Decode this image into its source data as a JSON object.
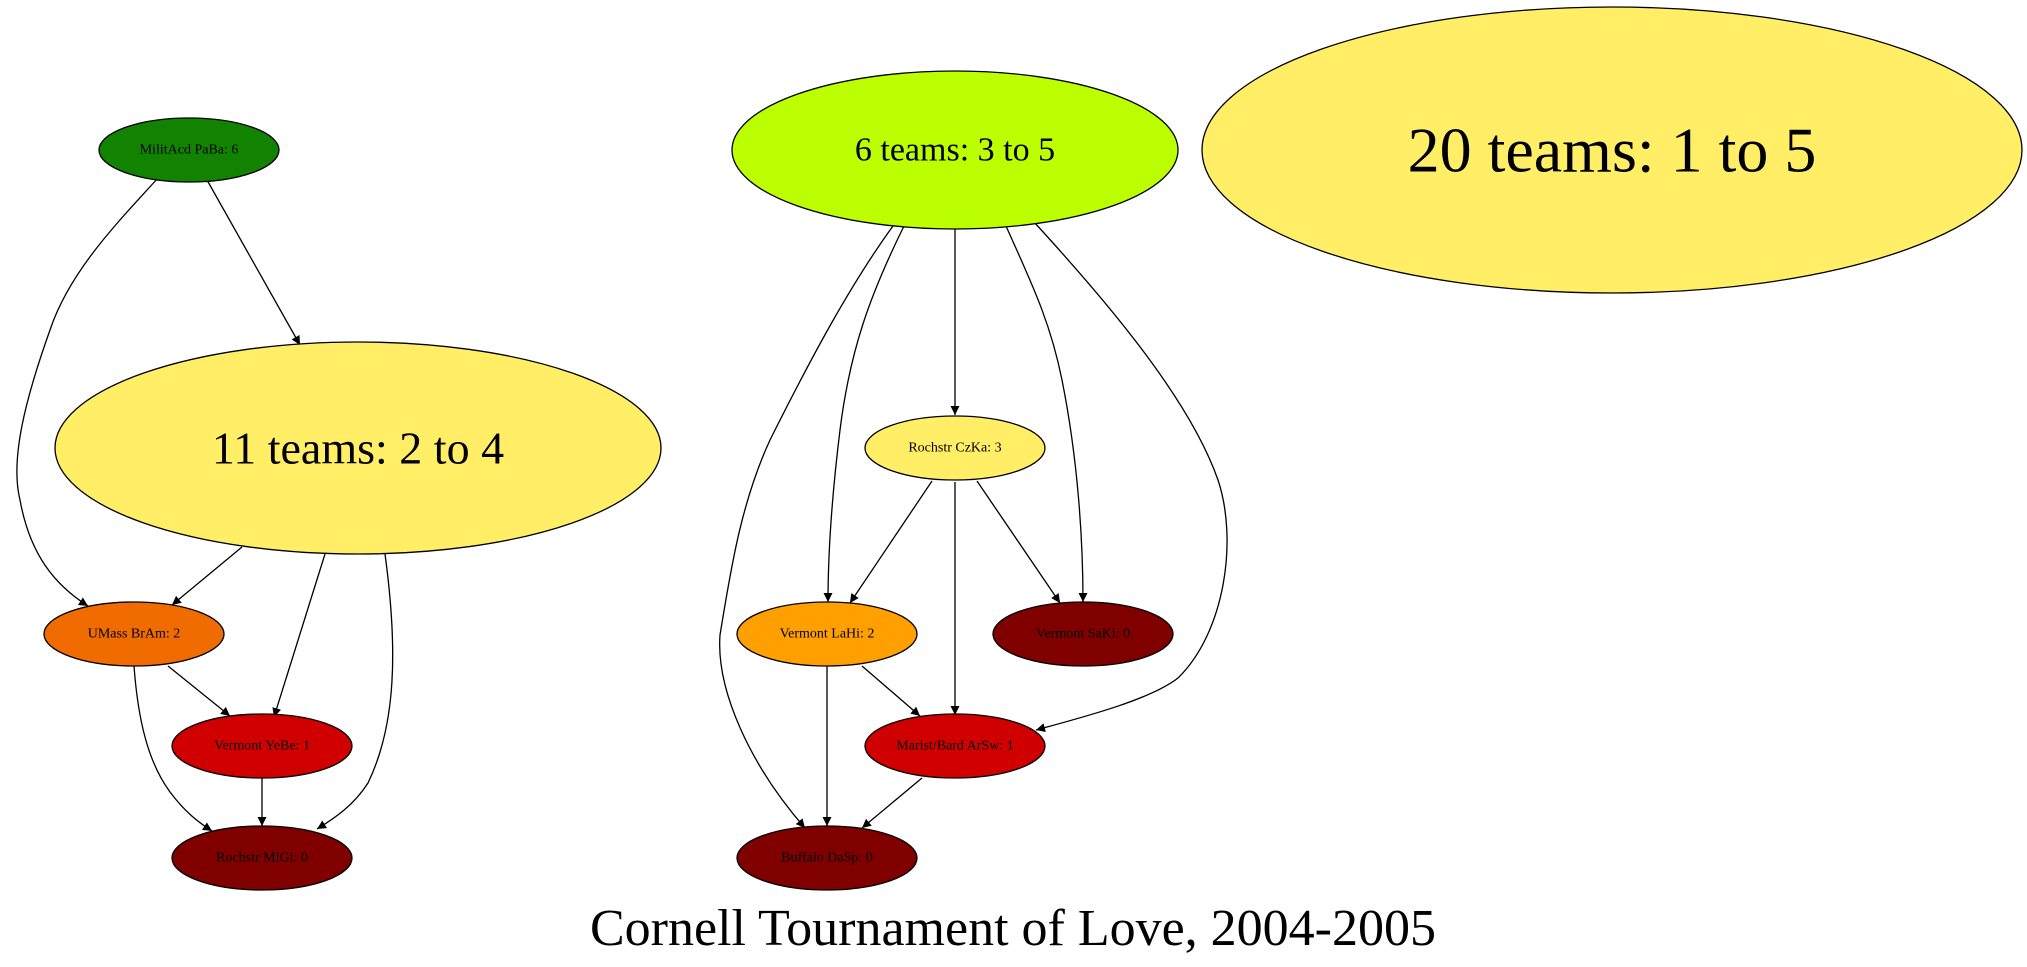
{
  "title": "Cornell Tournament of Love, 2004-2005",
  "nodes": [
    {
      "id": "militacd",
      "label": "MilitAcd PaBa: 6",
      "color": "#118300"
    },
    {
      "id": "six",
      "label": "6 teams: 3 to 5",
      "color": "#bbff00"
    },
    {
      "id": "twenty",
      "label": "20 teams: 1 to 5",
      "color": "#ffee66"
    },
    {
      "id": "eleven",
      "label": "11 teams: 2 to 4",
      "color": "#ffee66"
    },
    {
      "id": "rochstr_czka",
      "label": "Rochstr CzKa: 3",
      "color": "#ffee66"
    },
    {
      "id": "umass",
      "label": "UMass BrAm: 2",
      "color": "#f06c00"
    },
    {
      "id": "vermont_lahi",
      "label": "Vermont LaHi: 2",
      "color": "#ffa000"
    },
    {
      "id": "vermont_saki",
      "label": "Vermont SaKi: 0",
      "color": "#800000"
    },
    {
      "id": "vermont_yebe",
      "label": "Vermont YeBe: 1",
      "color": "#d00000"
    },
    {
      "id": "marist",
      "label": "Marist/Bard ArSw: 1",
      "color": "#d00000"
    },
    {
      "id": "rochstr_migi",
      "label": "Rochstr MiGi: 0",
      "color": "#800000"
    },
    {
      "id": "buffalo",
      "label": "Buffalo DaSp: 0",
      "color": "#800000"
    }
  ],
  "edges": [
    {
      "from": "militacd",
      "to": "eleven"
    },
    {
      "from": "militacd",
      "to": "umass"
    },
    {
      "from": "eleven",
      "to": "umass"
    },
    {
      "from": "eleven",
      "to": "vermont_yebe"
    },
    {
      "from": "eleven",
      "to": "rochstr_migi"
    },
    {
      "from": "umass",
      "to": "vermont_yebe"
    },
    {
      "from": "umass",
      "to": "rochstr_migi"
    },
    {
      "from": "vermont_yebe",
      "to": "rochstr_migi"
    },
    {
      "from": "six",
      "to": "rochstr_czka"
    },
    {
      "from": "six",
      "to": "vermont_lahi"
    },
    {
      "from": "six",
      "to": "buffalo"
    },
    {
      "from": "six",
      "to": "vermont_saki"
    },
    {
      "from": "six",
      "to": "marist"
    },
    {
      "from": "rochstr_czka",
      "to": "vermont_lahi"
    },
    {
      "from": "rochstr_czka",
      "to": "marist"
    },
    {
      "from": "rochstr_czka",
      "to": "vermont_saki"
    },
    {
      "from": "vermont_lahi",
      "to": "marist"
    },
    {
      "from": "vermont_lahi",
      "to": "buffalo"
    },
    {
      "from": "marist",
      "to": "buffalo"
    }
  ]
}
